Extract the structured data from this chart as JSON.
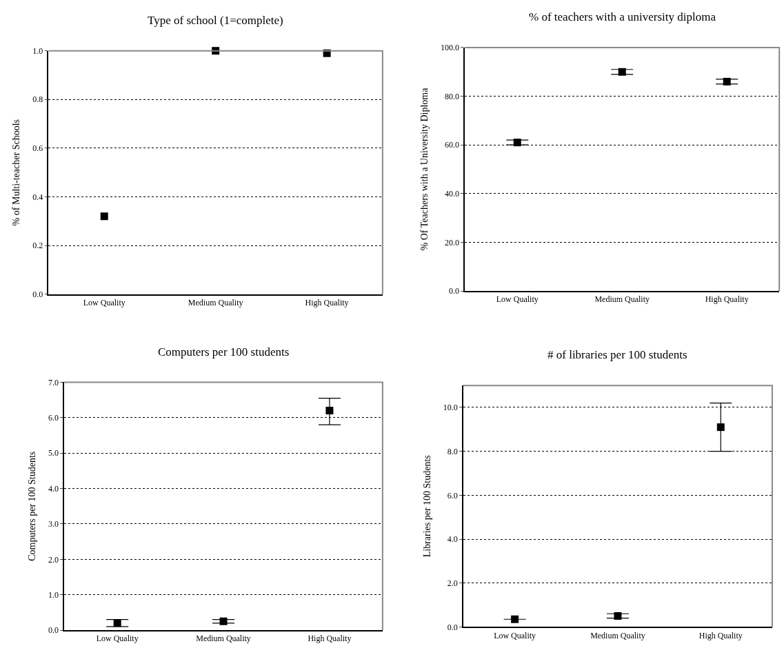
{
  "chart_data": [
    {
      "type": "scatter",
      "title": "Type of school (1=complete)",
      "ylabel": "% of Multi-teacher Schools",
      "categories": [
        "Low Quality",
        "Medium Quality",
        "High Quality"
      ],
      "values": [
        0.32,
        1.0,
        0.99
      ],
      "color": "#000000",
      "marker": "square",
      "grid": "y",
      "ylim": [
        0,
        1
      ],
      "yticks": [
        {
          "value": 0,
          "label": "0.0"
        },
        {
          "value": 0.2,
          "label": "0.2"
        },
        {
          "value": 0.4,
          "label": "0.4"
        },
        {
          "value": 0.6,
          "label": "0.6"
        },
        {
          "value": 0.8,
          "label": "0.8"
        },
        {
          "value": 1,
          "label": "1.0"
        }
      ]
    },
    {
      "type": "scatter",
      "title": "% of teachers with a university diploma",
      "ylabel": "% Of Teachers with a University Diploma",
      "categories": [
        "Low Quality",
        "Medium Quality",
        "High Quality"
      ],
      "values": [
        61,
        90,
        86
      ],
      "errors": [
        [
          60,
          62
        ],
        [
          89,
          91
        ],
        [
          85,
          87
        ]
      ],
      "color": "#000000",
      "marker": "square",
      "grid": "y",
      "ylim": [
        0,
        100
      ],
      "yticks": [
        {
          "value": 0,
          "label": "0.0"
        },
        {
          "value": 20,
          "label": "20.0"
        },
        {
          "value": 40,
          "label": "40.0"
        },
        {
          "value": 60,
          "label": "60.0"
        },
        {
          "value": 80,
          "label": "80.0"
        },
        {
          "value": 100,
          "label": "100.0"
        }
      ]
    },
    {
      "type": "scatter",
      "title": "Computers per 100 students",
      "ylabel": "Computers per 100 Students",
      "categories": [
        "Low Quality",
        "Medium Quality",
        "High Quality"
      ],
      "values": [
        0.2,
        0.25,
        6.2
      ],
      "errors": [
        [
          0.1,
          0.3
        ],
        [
          0.2,
          0.3
        ],
        [
          5.8,
          6.55
        ]
      ],
      "color": "#000000",
      "marker": "square",
      "grid": "y",
      "ylim": [
        0,
        7
      ],
      "yticks": [
        {
          "value": 0,
          "label": "0.0"
        },
        {
          "value": 1,
          "label": "1.0"
        },
        {
          "value": 2,
          "label": "2.0"
        },
        {
          "value": 3,
          "label": "3.0"
        },
        {
          "value": 4,
          "label": "4.0"
        },
        {
          "value": 5,
          "label": "5.0"
        },
        {
          "value": 6,
          "label": "6.0"
        },
        {
          "value": 7,
          "label": "7.0"
        }
      ]
    },
    {
      "type": "scatter",
      "title": "# of libraries per 100 students",
      "ylabel": "Libraries per 100 Students",
      "categories": [
        "Low Quality",
        "Medium Quality",
        "High Quality"
      ],
      "values": [
        0.35,
        0.5,
        9.1
      ],
      "errors": [
        null,
        [
          0.4,
          0.6
        ],
        [
          8.0,
          10.2
        ]
      ],
      "color": "#000000",
      "marker": "square",
      "grid": "y",
      "ylim": [
        0,
        11
      ],
      "yticks": [
        {
          "value": 0,
          "label": "0.0"
        },
        {
          "value": 2,
          "label": "2.0"
        },
        {
          "value": 4,
          "label": "4.0"
        },
        {
          "value": 6,
          "label": "6.0"
        },
        {
          "value": 8,
          "label": "8.0"
        },
        {
          "value": 10,
          "label": "10.0"
        }
      ]
    }
  ]
}
